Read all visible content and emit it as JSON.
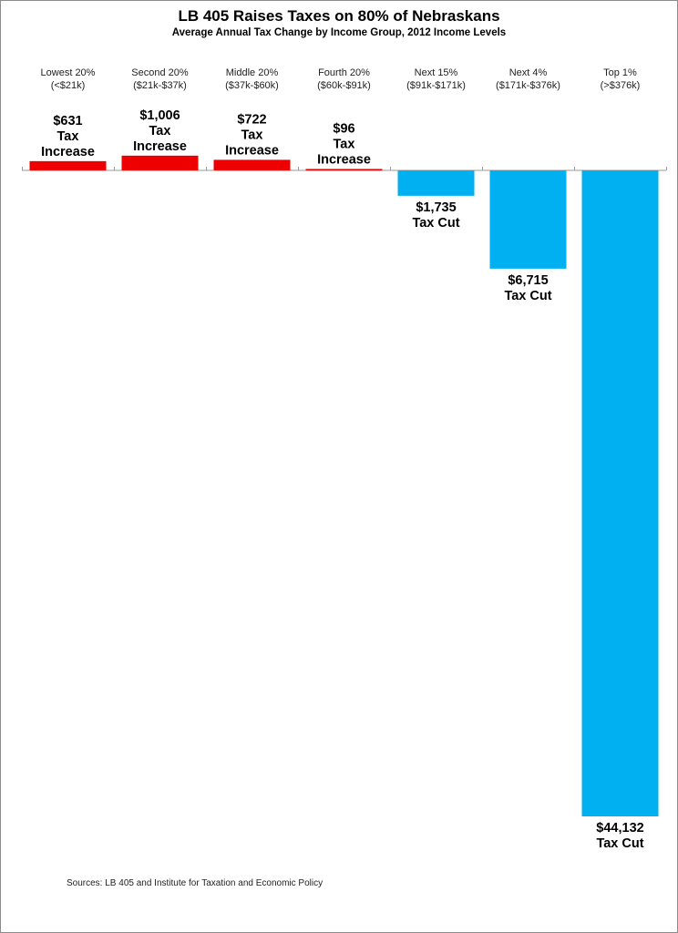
{
  "title": "LB 405 Raises Taxes on 80%  of Nebraskans",
  "subtitle": "Average Annual Tax Change by Income Group, 2012 Income Levels",
  "source": "Sources: LB 405  and Institute for Taxation and Economic Policy",
  "colors": {
    "increase": "#ee0000",
    "cut": "#00b0f0",
    "axis": "#9a9a9a"
  },
  "chart_data": {
    "type": "bar",
    "title": "LB 405 Raises Taxes on 80%  of Nebraskans",
    "subtitle": "Average Annual Tax Change by Income Group, 2012 Income Levels",
    "categories": [
      {
        "name": "Lowest 20%",
        "range": "(<$21k)"
      },
      {
        "name": "Second 20%",
        "range": "($21k-$37k)"
      },
      {
        "name": "Middle 20%",
        "range": "($37k-$60k)"
      },
      {
        "name": "Fourth 20%",
        "range": "($60k-$91k)"
      },
      {
        "name": "Next 15%",
        "range": "($91k-$171k)"
      },
      {
        "name": "Next 4%",
        "range": "($171k-$376k)"
      },
      {
        "name": "Top 1%",
        "range": "(>$376k)"
      }
    ],
    "values": [
      631,
      1006,
      722,
      96,
      -1735,
      -6715,
      -44132
    ],
    "data_labels": [
      [
        "$631",
        "Tax",
        "Increase"
      ],
      [
        "$1,006",
        "Tax",
        "Increase"
      ],
      [
        "$722",
        "Tax",
        "Increase"
      ],
      [
        "$96",
        "Tax",
        "Increase"
      ],
      [
        "$1,735",
        "Tax Cut"
      ],
      [
        "$6,715",
        "Tax Cut"
      ],
      [
        "$44,132",
        "Tax Cut"
      ]
    ],
    "xlabel": "",
    "ylabel": "",
    "axis_position": "top",
    "grid": false,
    "legend": "none"
  }
}
